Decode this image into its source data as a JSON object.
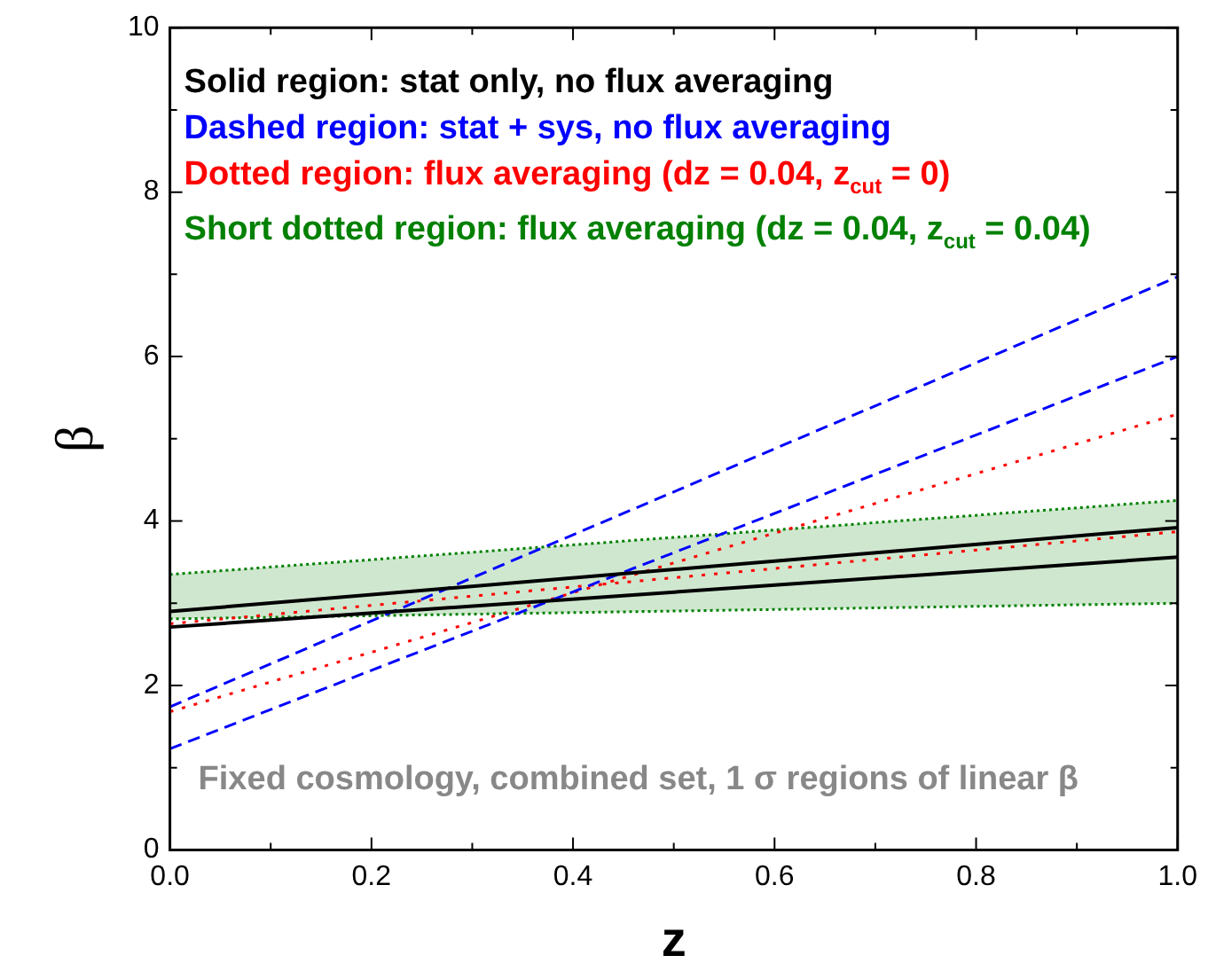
{
  "chart_data": {
    "type": "line",
    "xlabel": "z",
    "ylabel": "β",
    "x": [
      0,
      1
    ],
    "series": [
      {
        "name": "Solid region:  stat only, no flux averaging",
        "color": "#000000",
        "values": [
          2.9,
          3.92
        ],
        "line_style": "solid"
      },
      {
        "color": "#000000",
        "values": [
          2.71,
          3.56
        ],
        "line_style": "solid"
      },
      {
        "name": "Dashed region:  stat + sys, no flux averaging",
        "color": "#0000ff",
        "values": [
          1.74,
          6.97
        ],
        "line_style": "dashed"
      },
      {
        "color": "#0000ff",
        "values": [
          1.23,
          6.0
        ],
        "line_style": "dashed"
      },
      {
        "name": "Dotted region: flux averaging (dz = 0.04, z$_{cut}$ = 0)",
        "color": "#ff0000",
        "values": [
          1.68,
          5.3
        ],
        "line_style": "dotted"
      },
      {
        "color": "#ff0000",
        "values": [
          2.75,
          3.87
        ],
        "line_style": "dotted"
      },
      {
        "name": "Short dotted region: flux averaging (dz = 0.04, z$_{cut}$ = 0.04)",
        "color": "#008000",
        "values": [
          3.35,
          4.25
        ],
        "line_style": "dotted"
      },
      {
        "color": "#008000",
        "values": [
          2.81,
          3.0
        ],
        "lower": [
          2.81,
          3.0
        ],
        "upper": [
          3.35,
          4.25
        ],
        "line_style": "dotted"
      }
    ],
    "xlim": [
      0,
      1
    ],
    "ylim": [
      0,
      10
    ],
    "xticks": [
      {
        "value": 0,
        "label": "0.0"
      },
      {
        "value": 0.1,
        "label": null
      },
      {
        "value": 0.2,
        "label": "0.2"
      },
      {
        "value": 0.3,
        "label": null
      },
      {
        "value": 0.4,
        "label": "0.4"
      },
      {
        "value": 0.5,
        "label": null
      },
      {
        "value": 0.6,
        "label": "0.6"
      },
      {
        "value": 0.7,
        "label": null
      },
      {
        "value": 0.8,
        "label": "0.8"
      },
      {
        "value": 0.9,
        "label": null
      },
      {
        "value": 1,
        "label": "1.0"
      }
    ],
    "yticks": [
      0,
      {
        "value": 1,
        "label": null
      },
      2,
      {
        "value": 3,
        "label": null
      },
      4,
      {
        "value": 5,
        "label": null
      },
      6,
      {
        "value": 7,
        "label": null
      },
      8,
      {
        "value": 9,
        "label": null
      },
      10
    ],
    "annotations": [
      "Fixed cosmology, combined set, 1 σ regions of linear β"
    ],
    "legend": "top left",
    "grid": false,
    "marker": "none"
  }
}
